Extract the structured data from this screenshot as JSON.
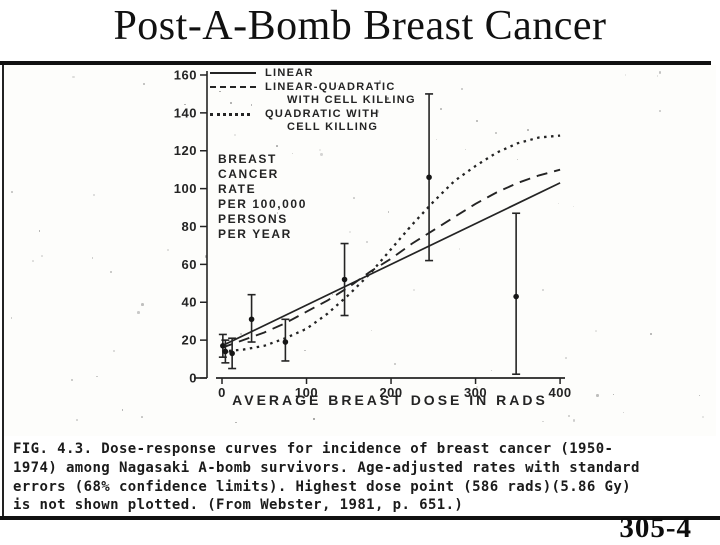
{
  "slide": {
    "title": "Post-A-Bomb Breast Cancer",
    "page_number": "305-4"
  },
  "figure": {
    "rate_label_lines": [
      "BREAST",
      "CANCER",
      "RATE",
      "PER 100,000",
      "PERSONS",
      "PER YEAR"
    ],
    "caption_lines": [
      "FIG. 4.3.  Dose-response curves for incidence of breast cancer (1950-",
      "1974) among Nagasaki A-bomb survivors.  Age-adjusted rates with standard",
      "errors (68% confidence limits).  Highest dose point (586 rads)(5.86 Gy)",
      "is not shown plotted.  (From Webster, 1981, p. 651.)"
    ]
  },
  "chart_data": {
    "type": "line",
    "title": "",
    "xlabel": "AVERAGE BREAST DOSE IN RADS",
    "ylabel": "BREAST CANCER RATE PER 100,000 PERSONS PER YEAR",
    "xlim": [
      0,
      400
    ],
    "ylim": [
      0,
      160
    ],
    "x_ticks": [
      0,
      100,
      200,
      300,
      400
    ],
    "y_ticks": [
      0,
      20,
      40,
      60,
      80,
      100,
      120,
      140,
      160
    ],
    "grid": "off",
    "legend_position": "upper-left-inside",
    "legend": [
      {
        "style": "solid",
        "lines": [
          "LINEAR"
        ]
      },
      {
        "style": "dashed",
        "lines": [
          "LINEAR-QUADRATIC",
          "WITH CELL KILLING"
        ]
      },
      {
        "style": "dotted",
        "lines": [
          "QUADRATIC WITH",
          "CELL KILLING"
        ]
      }
    ],
    "series": [
      {
        "name": "Linear",
        "style": "solid",
        "x": [
          0,
          400
        ],
        "y": [
          17,
          103
        ]
      },
      {
        "name": "Linear-quadratic with cell killing",
        "style": "dashed",
        "x": [
          0,
          25,
          50,
          75,
          100,
          125,
          150,
          175,
          200,
          225,
          250,
          275,
          300,
          325,
          350,
          375,
          400
        ],
        "y": [
          16,
          20,
          24,
          29,
          35,
          41,
          48,
          56,
          63,
          71,
          78,
          85,
          92,
          98,
          103,
          107,
          110
        ]
      },
      {
        "name": "Quadratic with cell killing",
        "style": "dotted",
        "x": [
          0,
          25,
          50,
          75,
          100,
          125,
          150,
          175,
          200,
          225,
          250,
          275,
          300,
          325,
          350,
          375,
          400
        ],
        "y": [
          14,
          15,
          17,
          21,
          26,
          34,
          44,
          55,
          68,
          81,
          93,
          104,
          112,
          119,
          124,
          127,
          128
        ]
      }
    ],
    "points": [
      {
        "x": 1,
        "y": 17,
        "lo": 11,
        "hi": 23
      },
      {
        "x": 4,
        "y": 14,
        "lo": 8,
        "hi": 20
      },
      {
        "x": 12,
        "y": 13,
        "lo": 5,
        "hi": 21
      },
      {
        "x": 35,
        "y": 31,
        "lo": 19,
        "hi": 44
      },
      {
        "x": 75,
        "y": 19,
        "lo": 9,
        "hi": 31
      },
      {
        "x": 145,
        "y": 52,
        "lo": 33,
        "hi": 71
      },
      {
        "x": 245,
        "y": 106,
        "lo": 62,
        "hi": 150
      },
      {
        "x": 348,
        "y": 43,
        "lo": 2,
        "hi": 87
      }
    ]
  }
}
